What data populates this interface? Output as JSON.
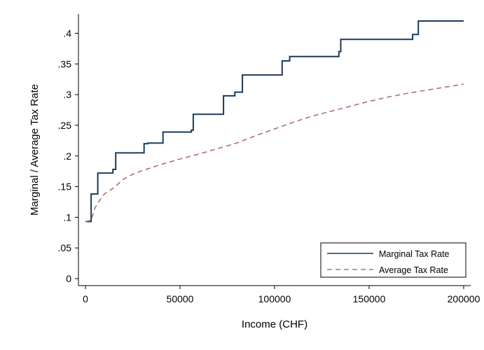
{
  "chart_data": {
    "type": "line",
    "title": "",
    "xlabel": "Income (CHF)",
    "ylabel": "Marginal / Average Tax Rate",
    "xlim": [
      0,
      200000
    ],
    "ylim": [
      0,
      0.42
    ],
    "x_ticks": [
      0,
      50000,
      100000,
      150000,
      200000
    ],
    "x_tick_labels": [
      "0",
      "50000",
      "100000",
      "150000",
      "200000"
    ],
    "y_ticks": [
      0,
      0.05,
      0.1,
      0.15,
      0.2,
      0.25,
      0.3,
      0.35,
      0.4
    ],
    "y_tick_labels": [
      "0",
      ".05",
      ".1",
      ".15",
      ".2",
      ".25",
      ".3",
      ".35",
      ".4"
    ],
    "grid": false,
    "legend_position": "bottom-right",
    "series": [
      {
        "name": "Marginal Tax Rate",
        "color": "#1a3a5c",
        "style": "solid",
        "step": true,
        "points": [
          [
            0,
            0.093
          ],
          [
            3000,
            0.093
          ],
          [
            3000,
            0.138
          ],
          [
            6500,
            0.138
          ],
          [
            6500,
            0.172
          ],
          [
            14500,
            0.172
          ],
          [
            14500,
            0.178
          ],
          [
            16000,
            0.178
          ],
          [
            16000,
            0.205
          ],
          [
            31000,
            0.205
          ],
          [
            31000,
            0.22
          ],
          [
            33000,
            0.22
          ],
          [
            33000,
            0.221
          ],
          [
            41000,
            0.221
          ],
          [
            41000,
            0.239
          ],
          [
            56000,
            0.239
          ],
          [
            56000,
            0.242
          ],
          [
            57000,
            0.242
          ],
          [
            57000,
            0.268
          ],
          [
            73000,
            0.268
          ],
          [
            73000,
            0.298
          ],
          [
            79000,
            0.298
          ],
          [
            79000,
            0.304
          ],
          [
            83000,
            0.304
          ],
          [
            83000,
            0.332
          ],
          [
            104000,
            0.332
          ],
          [
            104000,
            0.355
          ],
          [
            108000,
            0.355
          ],
          [
            108000,
            0.362
          ],
          [
            134000,
            0.362
          ],
          [
            134000,
            0.37
          ],
          [
            135000,
            0.37
          ],
          [
            135000,
            0.39
          ],
          [
            173000,
            0.39
          ],
          [
            173000,
            0.398
          ],
          [
            176000,
            0.398
          ],
          [
            176000,
            0.42
          ],
          [
            200000,
            0.42
          ]
        ]
      },
      {
        "name": "Average Tax Rate",
        "color": "#b07070",
        "style": "dashed",
        "step": false,
        "points": [
          [
            0,
            0.093
          ],
          [
            3000,
            0.095
          ],
          [
            5000,
            0.115
          ],
          [
            8000,
            0.13
          ],
          [
            10000,
            0.138
          ],
          [
            15000,
            0.148
          ],
          [
            20000,
            0.162
          ],
          [
            25000,
            0.17
          ],
          [
            30000,
            0.176
          ],
          [
            40000,
            0.186
          ],
          [
            50000,
            0.195
          ],
          [
            60000,
            0.203
          ],
          [
            70000,
            0.212
          ],
          [
            80000,
            0.221
          ],
          [
            90000,
            0.233
          ],
          [
            100000,
            0.244
          ],
          [
            110000,
            0.255
          ],
          [
            120000,
            0.265
          ],
          [
            130000,
            0.273
          ],
          [
            140000,
            0.281
          ],
          [
            150000,
            0.289
          ],
          [
            160000,
            0.296
          ],
          [
            170000,
            0.302
          ],
          [
            180000,
            0.307
          ],
          [
            190000,
            0.312
          ],
          [
            200000,
            0.317
          ]
        ]
      }
    ]
  }
}
